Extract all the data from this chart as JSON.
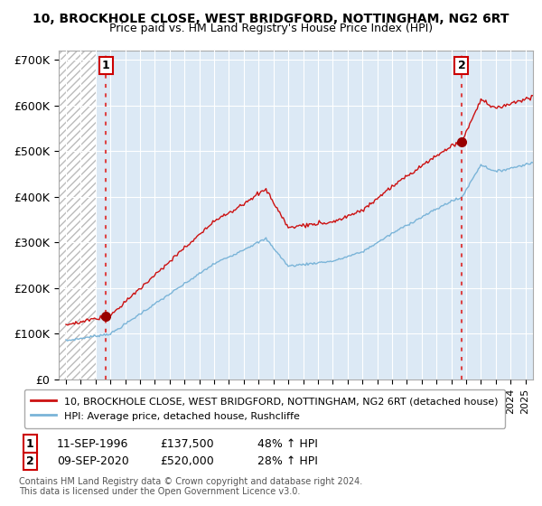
{
  "title_line1": "10, BROCKHOLE CLOSE, WEST BRIDGFORD, NOTTINGHAM, NG2 6RT",
  "title_line2": "Price paid vs. HM Land Registry's House Price Index (HPI)",
  "ylim": [
    0,
    720000
  ],
  "yticks": [
    0,
    100000,
    200000,
    300000,
    400000,
    500000,
    600000,
    700000
  ],
  "ytick_labels": [
    "£0",
    "£100K",
    "£200K",
    "£300K",
    "£400K",
    "£500K",
    "£600K",
    "£700K"
  ],
  "hpi_color": "#7ab4d8",
  "price_color": "#cc1111",
  "marker_color": "#990000",
  "dashed_line_color": "#dd4444",
  "sale1_date_num": 1996.69,
  "sale1_price": 137500,
  "sale1_label": "1",
  "sale2_date_num": 2020.69,
  "sale2_price": 520000,
  "sale2_label": "2",
  "legend_line1": "10, BROCKHOLE CLOSE, WEST BRIDGFORD, NOTTINGHAM, NG2 6RT (detached house)",
  "legend_line2": "HPI: Average price, detached house, Rushcliffe",
  "table_row1": [
    "1",
    "11-SEP-1996",
    "£137,500",
    "48% ↑ HPI"
  ],
  "table_row2": [
    "2",
    "09-SEP-2020",
    "£520,000",
    "28% ↑ HPI"
  ],
  "footer": "Contains HM Land Registry data © Crown copyright and database right 2024.\nThis data is licensed under the Open Government Licence v3.0.",
  "xmin": 1993.5,
  "xmax": 2025.5,
  "plot_bg_color": "#dce9f5",
  "hatch_end": 1996.0
}
